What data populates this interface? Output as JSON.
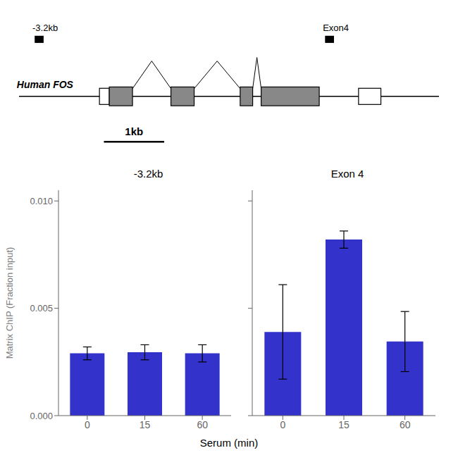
{
  "chart_data": [
    {
      "type": "bar",
      "title": "-3.2kb",
      "categories": [
        "0",
        "15",
        "60"
      ],
      "values": [
        0.0029,
        0.00295,
        0.0029
      ],
      "errors": [
        0.0003,
        0.00035,
        0.0004
      ],
      "color": "#3333cc",
      "ylabel": "Matrix ChIP (Fraction input)",
      "xlabel": "Serum (min)",
      "ylim": [
        0.0,
        0.0105
      ],
      "yticks": [
        {
          "value": 0,
          "label": "0.000"
        },
        {
          "value": 0.005,
          "label": "0.005"
        },
        {
          "value": 0.01,
          "label": "0.010"
        }
      ],
      "grid": false,
      "annotations": [
        "Human FOS",
        "-3.2kb",
        "Exon4",
        "1kb"
      ]
    },
    {
      "type": "bar",
      "title": "Exon 4",
      "categories": [
        "0",
        "15",
        "60"
      ],
      "values": [
        0.0039,
        0.0082,
        0.00345
      ],
      "errors": [
        0.0022,
        0.0004,
        0.0014
      ],
      "color": "#3333cc",
      "ylim": [
        0.0,
        0.0105
      ],
      "yticks": [
        {
          "value": 0,
          "label": "0.000"
        },
        {
          "value": 0.005,
          "label": "0.005"
        },
        {
          "value": 0.01,
          "label": "0.010"
        }
      ],
      "grid": false,
      "tick_labels": "x"
    }
  ]
}
